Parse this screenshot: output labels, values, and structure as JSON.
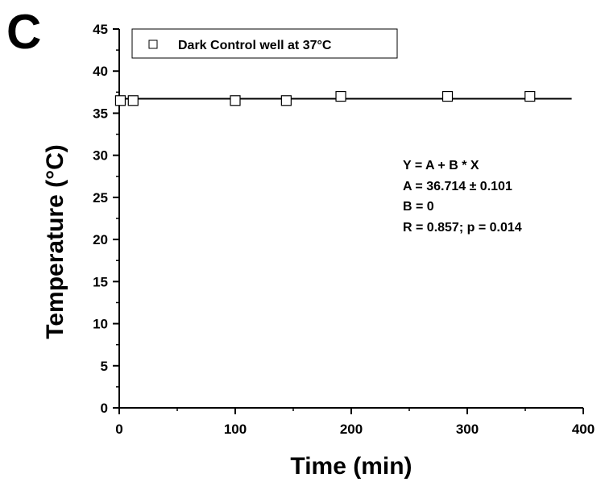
{
  "panel_label": "C",
  "chart_data": {
    "type": "scatter",
    "xlabel": "Time (min)",
    "ylabel": "Temperature (°C)",
    "xlim": [
      0,
      400
    ],
    "ylim": [
      0,
      45
    ],
    "x_major_ticks": [
      0,
      100,
      200,
      300,
      400
    ],
    "x_tick_labels": [
      "0",
      "100",
      "200",
      "300",
      "400"
    ],
    "y_major_ticks": [
      0,
      5,
      10,
      15,
      20,
      25,
      30,
      35,
      40,
      45
    ],
    "y_tick_labels": [
      "0",
      "5",
      "10",
      "15",
      "20",
      "25",
      "30",
      "35",
      "40",
      "45"
    ],
    "grid": false,
    "legend_position": "top-left",
    "series": [
      {
        "name": "Dark Control well at 37°C",
        "marker": "open-square",
        "color": "#000000",
        "x": [
          1,
          12,
          100,
          144,
          191,
          283,
          354
        ],
        "y": [
          36.5,
          36.5,
          36.5,
          36.5,
          37.0,
          37.0,
          37.0
        ]
      }
    ],
    "fit_line": {
      "color": "#000000",
      "x": [
        0,
        390
      ],
      "y": [
        36.714,
        36.714
      ]
    },
    "annotations": [
      "Y = A + B * X",
      "A = 36.714 ± 0.101",
      "B = 0",
      "R = 0.857; p = 0.014"
    ]
  }
}
